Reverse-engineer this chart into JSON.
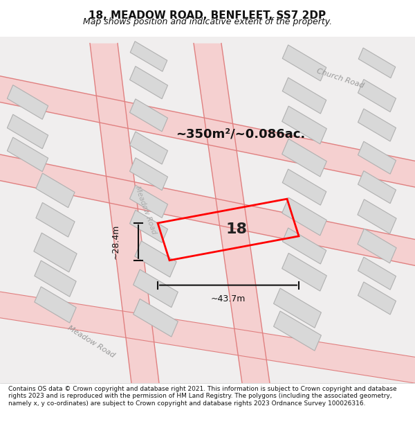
{
  "title": "18, MEADOW ROAD, BENFLEET, SS7 2DP",
  "subtitle": "Map shows position and indicative extent of the property.",
  "copyright": "Contains OS data © Crown copyright and database right 2021. This information is subject to Crown copyright and database rights 2023 and is reproduced with the permission of HM Land Registry. The polygons (including the associated geometry, namely x, y co-ordinates) are subject to Crown copyright and database rights 2023 Ordnance Survey 100026316.",
  "area_text": "~350m²/~0.086ac.",
  "width_text": "~43.7m",
  "height_text": "~28.4m",
  "property_number": "18",
  "bg_color": "#f5f5f5",
  "map_bg": "#f0eeee",
  "road_color": "#f4a0a0",
  "building_color": "#d8d8d8",
  "building_edge": "#b0b0b0",
  "property_color": "#ff0000",
  "dim_color": "#111111",
  "road_label_color": "#888888",
  "title_color": "#111111",
  "footer_color": "#111111"
}
